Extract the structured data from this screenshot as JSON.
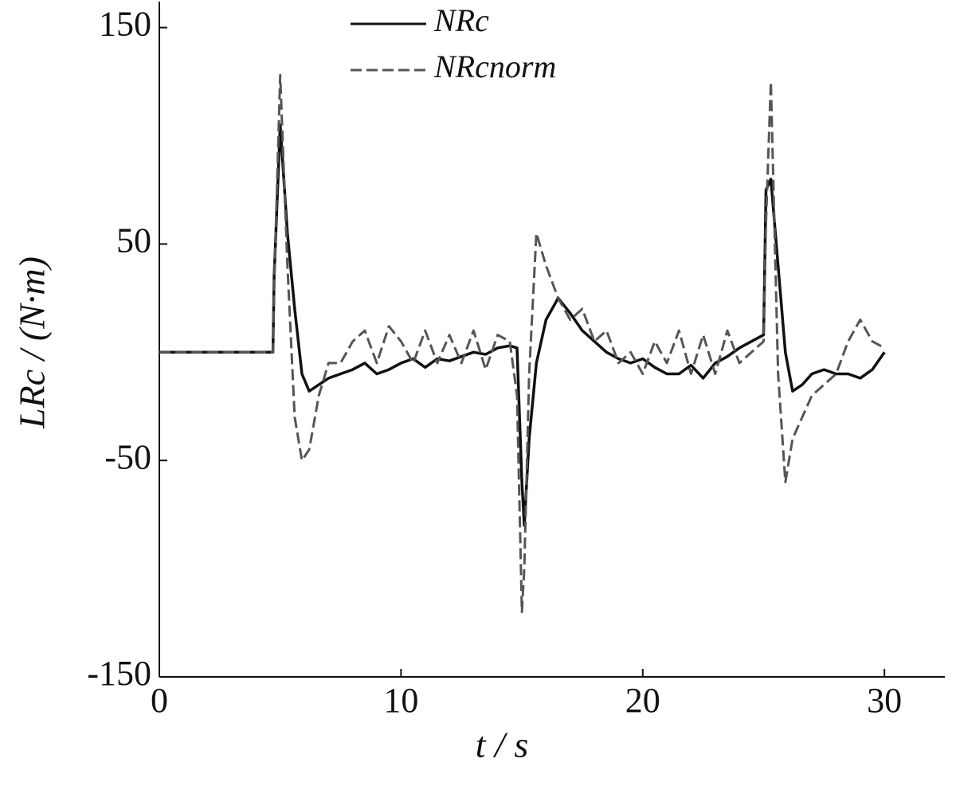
{
  "chart_data": {
    "type": "line",
    "x_label": "t / s",
    "y_label": "LRc / (N·m)",
    "x": [
      0,
      4.7,
      4.75,
      5.0,
      5.3,
      5.6,
      5.9,
      6.2,
      6.6,
      7,
      7.5,
      8,
      8.5,
      9,
      9.5,
      10,
      10.5,
      11,
      11.5,
      12,
      12.5,
      13,
      13.5,
      14,
      14.5,
      14.8,
      15.0,
      15.1,
      15.3,
      15.6,
      16,
      16.5,
      17,
      17.5,
      18,
      18.5,
      19,
      19.5,
      20,
      20.5,
      21,
      21.5,
      22,
      22.5,
      23,
      23.5,
      24,
      24.5,
      25.0,
      25.1,
      25.3,
      25.6,
      25.9,
      26.2,
      26.6,
      27,
      27.5,
      28,
      28.5,
      29,
      29.5,
      30
    ],
    "series": [
      {
        "name": "NRc",
        "color": "#111111",
        "dashed": false,
        "values": [
          0,
          0,
          35,
          105,
          55,
          20,
          -10,
          -18,
          -15,
          -12,
          -10,
          -8,
          -5,
          -10,
          -8,
          -5,
          -3,
          -7,
          -3,
          -4,
          -2,
          0,
          -1,
          2,
          3,
          2,
          -60,
          -80,
          -40,
          -5,
          15,
          25,
          18,
          10,
          5,
          0,
          -3,
          -5,
          -3,
          -7,
          -10,
          -10,
          -6,
          -12,
          -5,
          -2,
          2,
          5,
          8,
          75,
          80,
          40,
          0,
          -18,
          -15,
          -10,
          -8,
          -10,
          -10,
          -12,
          -8,
          0
        ]
      },
      {
        "name": "NRcnorm",
        "color": "#555555",
        "dashed": true,
        "values": [
          0,
          0,
          30,
          128,
          40,
          -30,
          -50,
          -45,
          -20,
          -5,
          -5,
          5,
          10,
          -5,
          12,
          5,
          -5,
          10,
          -5,
          8,
          -5,
          10,
          -8,
          8,
          5,
          -20,
          -120,
          -100,
          -10,
          55,
          40,
          25,
          15,
          20,
          5,
          10,
          -5,
          0,
          -10,
          5,
          -5,
          10,
          -10,
          8,
          -10,
          10,
          -5,
          0,
          5,
          60,
          125,
          -10,
          -60,
          -40,
          -30,
          -20,
          -15,
          -10,
          5,
          15,
          5,
          2
        ]
      }
    ],
    "xlim": [
      0,
      32.5
    ],
    "xticks": [
      0,
      10,
      20,
      30
    ],
    "ylim": [
      -150,
      162
    ],
    "yticks": [
      -150,
      -50,
      50,
      150
    ],
    "grid": false,
    "legend": "top"
  }
}
